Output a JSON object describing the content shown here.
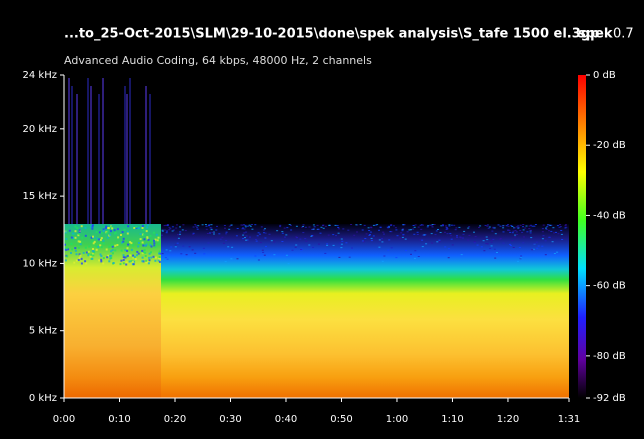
{
  "chart_data": {
    "type": "spectrogram",
    "title": "...to_25-Oct-2015\\SLM\\29-10-2015\\done\\spek analysis\\S_tafe 1500 el.3gp",
    "app_name": "spek",
    "app_version": "0.7",
    "subtitle": "Advanced Audio Coding, 64 kbps, 48000 Hz, 2 channels",
    "xlim": [
      0,
      91
    ],
    "xticks": [
      {
        "value": 0,
        "label": "0:00"
      },
      {
        "value": 10,
        "label": "0:10"
      },
      {
        "value": 20,
        "label": "0:20"
      },
      {
        "value": 30,
        "label": "0:30"
      },
      {
        "value": 40,
        "label": "0:40"
      },
      {
        "value": 50,
        "label": "0:50"
      },
      {
        "value": 60,
        "label": "1:00"
      },
      {
        "value": 70,
        "label": "1:10"
      },
      {
        "value": 80,
        "label": "1:20"
      },
      {
        "value": 91,
        "label": "1:31"
      }
    ],
    "ylim": [
      0,
      24
    ],
    "yticks": [
      {
        "value": 0,
        "label": "0 kHz"
      },
      {
        "value": 5,
        "label": "5 kHz"
      },
      {
        "value": 10,
        "label": "10 kHz"
      },
      {
        "value": 15,
        "label": "15 kHz"
      },
      {
        "value": 20,
        "label": "20 kHz"
      },
      {
        "value": 24,
        "label": "24 kHz"
      }
    ],
    "clim": [
      -92,
      0
    ],
    "cticks": [
      {
        "value": 0,
        "label": "0 dB"
      },
      {
        "value": -20,
        "label": "-20 dB"
      },
      {
        "value": -40,
        "label": "-40 dB"
      },
      {
        "value": -60,
        "label": "-60 dB"
      },
      {
        "value": -80,
        "label": "-80 dB"
      },
      {
        "value": -92,
        "label": "-92 dB"
      }
    ]
  }
}
